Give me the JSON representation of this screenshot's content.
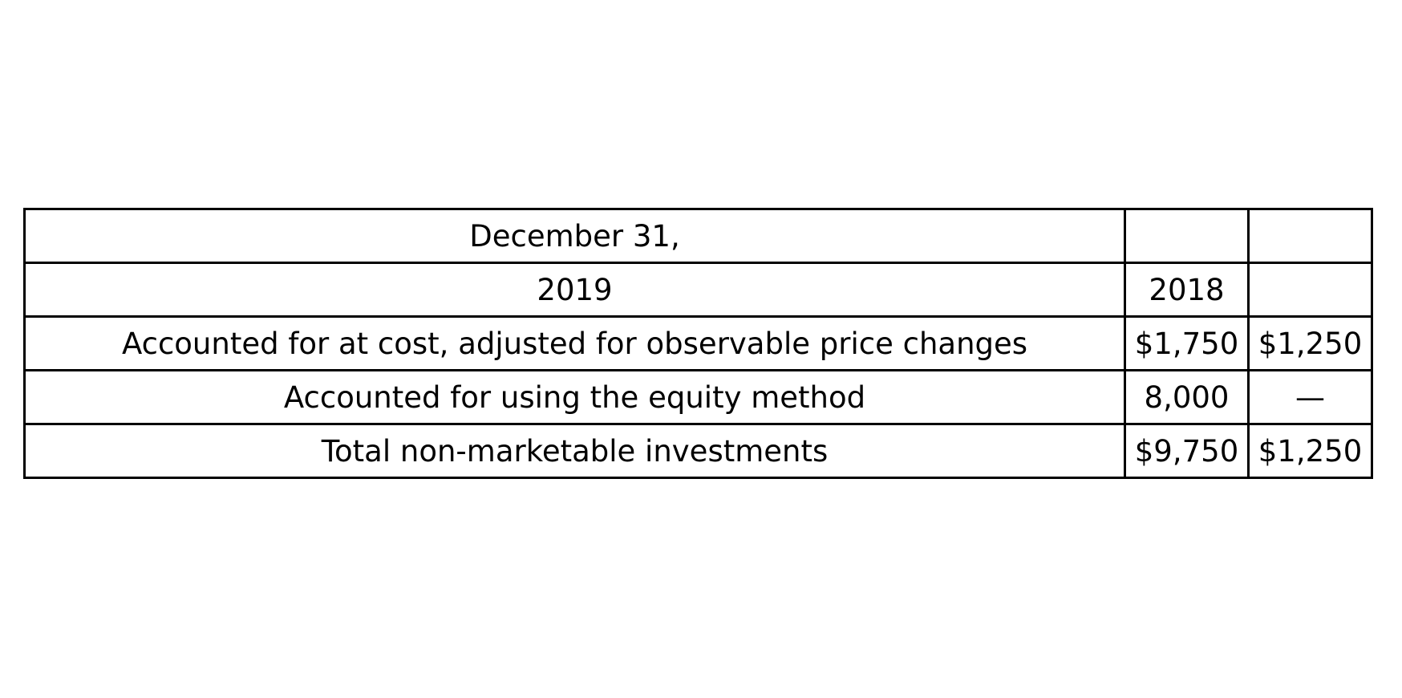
{
  "table": {
    "header_row_1": [
      "December 31,",
      "",
      ""
    ],
    "header_row_2": [
      "2019",
      "2018",
      ""
    ],
    "rows": [
      {
        "label": "Accounted for at cost, adjusted for observable price changes",
        "col_a": "$1,750",
        "col_b": "$1,250"
      },
      {
        "label": "Accounted for using the equity method",
        "col_a": "8,000",
        "col_b": "—"
      },
      {
        "label": "Total non-marketable investments",
        "col_a": "$9,750",
        "col_b": "$1,250"
      }
    ]
  }
}
